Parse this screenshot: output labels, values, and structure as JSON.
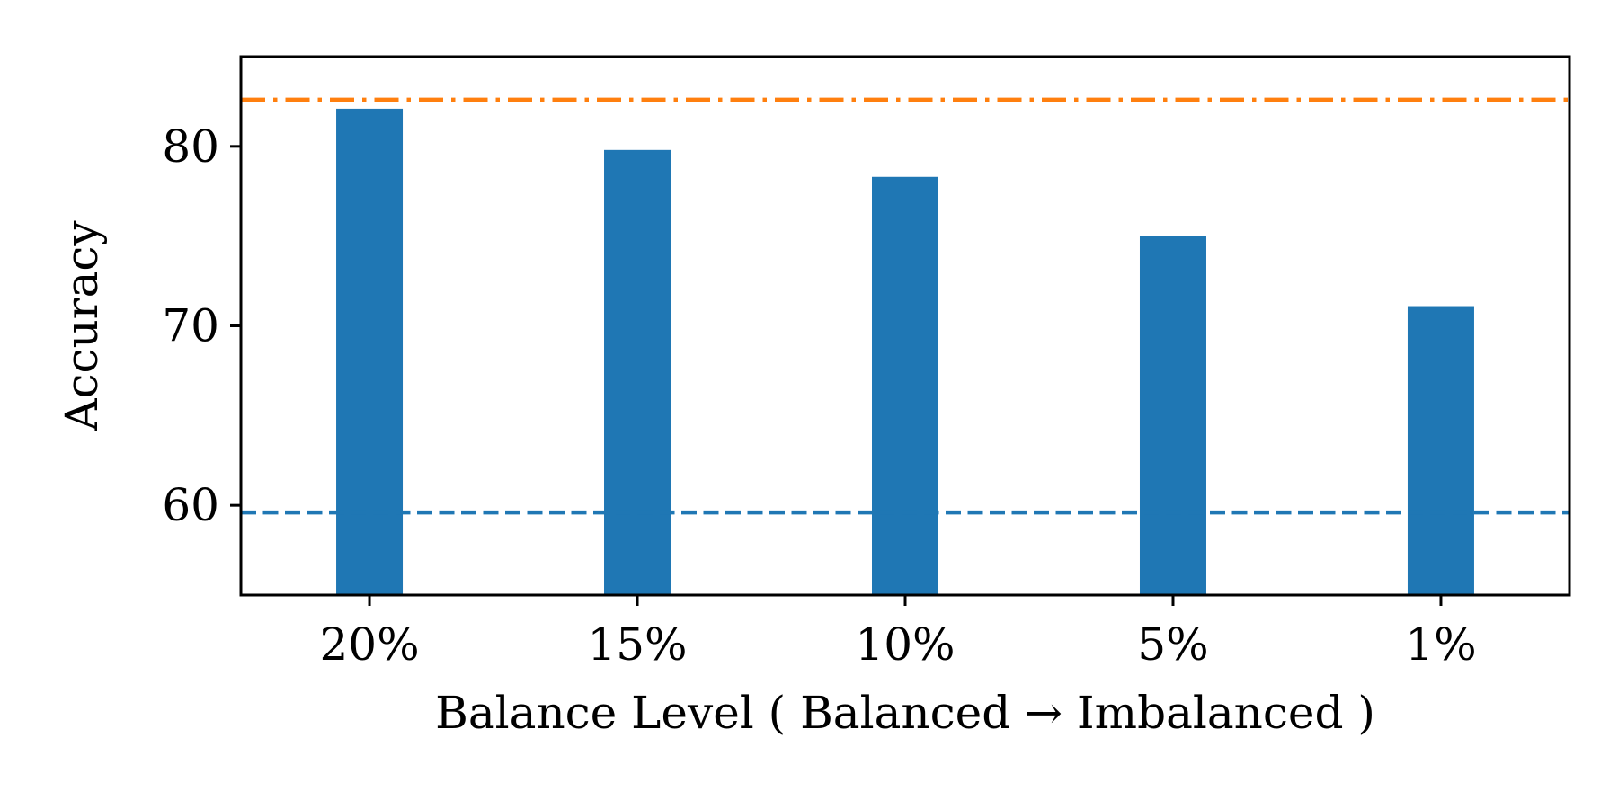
{
  "chart_data": {
    "type": "bar",
    "title": "",
    "xlabel": "Balance Level ( Balanced → Imbalanced )",
    "ylabel": "Accuracy",
    "categories": [
      "20%",
      "15%",
      "10%",
      "5%",
      "1%"
    ],
    "values": [
      82.1,
      79.8,
      78.3,
      75.0,
      71.1
    ],
    "ylim": [
      55,
      85
    ],
    "yticks": [
      60,
      70,
      80
    ],
    "reference_lines": [
      {
        "value": 82.6,
        "style": "dashdot",
        "color": "#ff7f0e"
      },
      {
        "value": 59.6,
        "style": "dashed",
        "color": "#1f77b4"
      }
    ],
    "bar_color": "#1f77b4",
    "grid": false,
    "legend": "none"
  }
}
